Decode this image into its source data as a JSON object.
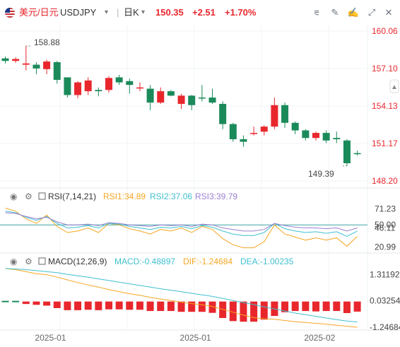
{
  "toolbar": {
    "pair": "美元/日元",
    "symbol": "USDJPY",
    "caret": "▾",
    "period": "日K",
    "period_caret": "▾",
    "price": "150.35",
    "change": "+2.51",
    "change_pct": "+1.70%",
    "icons": [
      "flag-icon",
      "line-chart-icon",
      "draw-tool-icon",
      "edit-icon",
      "expand-icon",
      "close-icon"
    ]
  },
  "colors": {
    "up": "#e8272d",
    "down": "#1b8a5a",
    "change": "#e8272d",
    "rsi1": "#f5a623",
    "rsi2": "#3fbfcf",
    "rsi3": "#9a7fd1",
    "macd": "#3fbfcf",
    "dif": "#f5a623",
    "dea": "#3fbfcf"
  },
  "chart_data": [
    {
      "type": "candlestick",
      "y_ticks": [
        "160.06",
        "157.10",
        "154.13",
        "151.17",
        "148.20"
      ],
      "ylim": [
        148.2,
        160.06
      ],
      "labels": {
        "high": "158.88",
        "low": "149.39"
      },
      "candles": [
        {
          "o": 157.9,
          "h": 158.05,
          "l": 157.5,
          "c": 157.7
        },
        {
          "o": 157.7,
          "h": 157.98,
          "l": 157.55,
          "c": 157.85
        },
        {
          "o": 157.4,
          "h": 158.88,
          "l": 156.95,
          "c": 157.5
        },
        {
          "o": 157.4,
          "h": 157.6,
          "l": 156.65,
          "c": 157.1
        },
        {
          "o": 157.05,
          "h": 157.8,
          "l": 156.65,
          "c": 157.65
        },
        {
          "o": 157.6,
          "h": 157.7,
          "l": 155.9,
          "c": 156.2
        },
        {
          "o": 156.4,
          "h": 156.4,
          "l": 154.8,
          "c": 155.0
        },
        {
          "o": 155.0,
          "h": 156.1,
          "l": 154.75,
          "c": 156.0
        },
        {
          "o": 155.3,
          "h": 156.4,
          "l": 155.0,
          "c": 156.15
        },
        {
          "o": 155.4,
          "h": 155.6,
          "l": 154.9,
          "c": 155.3
        },
        {
          "o": 155.4,
          "h": 156.5,
          "l": 155.2,
          "c": 156.35
        },
        {
          "o": 156.4,
          "h": 156.6,
          "l": 155.8,
          "c": 156.0
        },
        {
          "o": 156.1,
          "h": 156.3,
          "l": 155.1,
          "c": 155.8
        },
        {
          "o": 155.6,
          "h": 156.0,
          "l": 155.3,
          "c": 155.6
        },
        {
          "o": 155.5,
          "h": 155.8,
          "l": 153.8,
          "c": 154.4
        },
        {
          "o": 154.4,
          "h": 155.6,
          "l": 154.3,
          "c": 155.3
        },
        {
          "o": 155.3,
          "h": 155.4,
          "l": 154.9,
          "c": 154.95
        },
        {
          "o": 154.3,
          "h": 155.1,
          "l": 153.9,
          "c": 154.95
        },
        {
          "o": 154.95,
          "h": 155.0,
          "l": 153.8,
          "c": 154.2
        },
        {
          "o": 154.8,
          "h": 155.8,
          "l": 154.5,
          "c": 154.75
        },
        {
          "o": 154.8,
          "h": 155.5,
          "l": 154.3,
          "c": 154.4
        },
        {
          "o": 154.3,
          "h": 154.5,
          "l": 152.3,
          "c": 152.7
        },
        {
          "o": 152.7,
          "h": 152.8,
          "l": 151.3,
          "c": 151.5
        },
        {
          "o": 151.5,
          "h": 151.8,
          "l": 150.9,
          "c": 151.3
        },
        {
          "o": 152.0,
          "h": 152.5,
          "l": 151.8,
          "c": 152.0
        },
        {
          "o": 152.1,
          "h": 152.6,
          "l": 151.8,
          "c": 152.5
        },
        {
          "o": 152.5,
          "h": 154.8,
          "l": 152.3,
          "c": 154.2
        },
        {
          "o": 154.2,
          "h": 154.4,
          "l": 152.4,
          "c": 152.8
        },
        {
          "o": 152.8,
          "h": 152.9,
          "l": 151.9,
          "c": 152.2
        },
        {
          "o": 152.2,
          "h": 152.3,
          "l": 151.4,
          "c": 151.6
        },
        {
          "o": 151.6,
          "h": 152.1,
          "l": 151.4,
          "c": 152.0
        },
        {
          "o": 152.0,
          "h": 152.2,
          "l": 151.2,
          "c": 151.4
        },
        {
          "o": 151.6,
          "h": 152.1,
          "l": 151.2,
          "c": 151.5
        },
        {
          "o": 151.4,
          "h": 151.5,
          "l": 149.39,
          "c": 149.6
        },
        {
          "o": 150.4,
          "h": 150.6,
          "l": 150.2,
          "c": 150.35
        }
      ],
      "x_labels": [
        {
          "text": "2025-01",
          "index": 3
        },
        {
          "text": "2025-01",
          "index": 17
        },
        {
          "text": "2025-02",
          "index": 29
        }
      ]
    },
    {
      "type": "line",
      "name": "RSI(7,14,21)",
      "label": "RSI(7,14,21)",
      "legend": [
        "RSI1:34.89",
        "RSI2:37.06",
        "RSI3:39.79"
      ],
      "y_ticks": [
        "71.23",
        "50.00",
        "46.11",
        "20.99"
      ],
      "ylim": [
        15,
        78
      ],
      "reference_line": 50,
      "series": [
        {
          "name": "RSI1",
          "values": [
            72,
            68,
            58,
            52,
            63,
            48,
            40,
            42,
            46,
            40,
            52,
            50,
            45,
            42,
            38,
            44,
            42,
            46,
            40,
            48,
            44,
            32,
            24,
            20,
            20,
            28,
            50,
            38,
            34,
            30,
            33,
            30,
            33,
            22,
            35
          ]
        },
        {
          "name": "RSI2",
          "values": [
            68,
            66,
            60,
            56,
            61,
            52,
            46,
            47,
            49,
            46,
            52,
            51,
            48,
            46,
            44,
            47,
            46,
            48,
            45,
            49,
            47,
            42,
            38,
            36,
            36,
            40,
            52,
            45,
            42,
            40,
            41,
            39,
            41,
            35,
            42
          ]
        },
        {
          "name": "RSI3",
          "values": [
            66,
            65,
            61,
            58,
            60,
            54,
            50,
            50,
            51,
            49,
            53,
            52,
            50,
            49,
            48,
            50,
            49,
            50,
            48,
            51,
            50,
            46,
            44,
            42,
            42,
            44,
            52,
            49,
            47,
            46,
            46,
            45,
            46,
            42,
            46
          ]
        }
      ]
    },
    {
      "type": "bar",
      "name": "MACD(12,26,9)",
      "label": "MACD(12,26,9)",
      "legend": [
        "MACD:-0.48897",
        "DIF:-1.24684",
        "DEA:-1.00235"
      ],
      "y_ticks": [
        "1.31192",
        "0.03254",
        "-1.24684"
      ],
      "ylim": [
        -1.35,
        1.6
      ],
      "histogram": [
        0.03,
        0.02,
        -0.12,
        -0.16,
        -0.2,
        -0.32,
        -0.42,
        -0.42,
        -0.4,
        -0.42,
        -0.38,
        -0.38,
        -0.4,
        -0.4,
        -0.46,
        -0.46,
        -0.46,
        -0.5,
        -0.5,
        -0.5,
        -0.55,
        -0.8,
        -0.95,
        -0.98,
        -0.98,
        -0.88,
        -0.7,
        -0.52,
        -0.46,
        -0.46,
        -0.48,
        -0.46,
        -0.46,
        -0.56,
        -0.49
      ],
      "series": [
        {
          "name": "DIF",
          "values": [
            1.6,
            1.55,
            1.45,
            1.35,
            1.3,
            1.18,
            1.05,
            0.92,
            0.8,
            0.7,
            0.58,
            0.48,
            0.38,
            0.3,
            0.2,
            0.12,
            0.05,
            -0.03,
            -0.1,
            -0.16,
            -0.24,
            -0.38,
            -0.52,
            -0.66,
            -0.78,
            -0.84,
            -0.86,
            -0.92,
            -0.98,
            -1.02,
            -1.06,
            -1.1,
            -1.15,
            -1.2,
            -1.25
          ]
        },
        {
          "name": "DEA",
          "values": [
            1.6,
            1.58,
            1.55,
            1.5,
            1.45,
            1.4,
            1.32,
            1.25,
            1.18,
            1.1,
            1.02,
            0.94,
            0.86,
            0.78,
            0.7,
            0.62,
            0.55,
            0.48,
            0.4,
            0.32,
            0.25,
            0.15,
            0.05,
            -0.05,
            -0.15,
            -0.26,
            -0.36,
            -0.46,
            -0.56,
            -0.64,
            -0.72,
            -0.8,
            -0.88,
            -0.95,
            -1.0
          ]
        }
      ]
    }
  ]
}
